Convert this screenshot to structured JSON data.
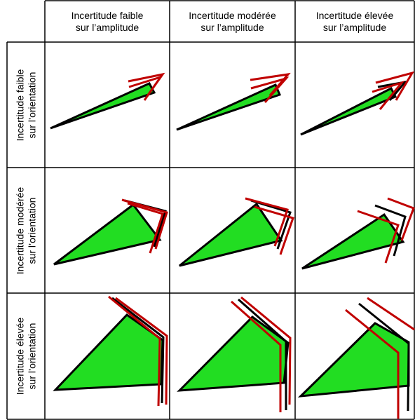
{
  "column_headers": [
    {
      "line1": "Incertitude faible",
      "line2": "sur l’amplitude"
    },
    {
      "line1": "Incertitude modérée",
      "line2": "sur l’amplitude"
    },
    {
      "line1": "Incertitude élevée",
      "line2": "sur l’amplitude"
    }
  ],
  "row_headers": [
    {
      "line1": "Incertitude faible",
      "line2": "sur l’orientation"
    },
    {
      "line1": "Incertitude modérée",
      "line2": "sur l’orientation"
    },
    {
      "line1": "Incertitude élevée",
      "line2": "sur l’orientation"
    }
  ],
  "colors": {
    "fill": "#22dd22",
    "outline": "#000000",
    "alternative": "#c00000",
    "grid": "#000000"
  }
}
